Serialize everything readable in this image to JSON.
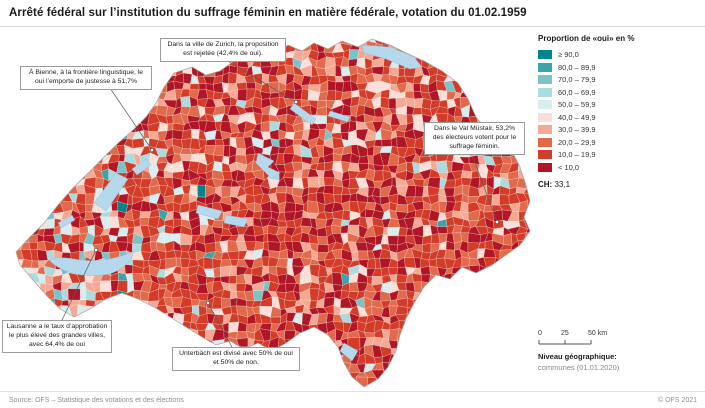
{
  "header": {
    "title": "Arrêté fédéral sur l’institution du suffrage féminin en matière fédérale, votation du 01.02.1959"
  },
  "legend": {
    "title": "Proportion de «oui» en %",
    "classes": [
      {
        "label": "≥ 90,0",
        "color": "#00848e"
      },
      {
        "label": "80,0 – 89,9",
        "color": "#38a4ac"
      },
      {
        "label": "70,0 – 79,9",
        "color": "#79c3c9"
      },
      {
        "label": "60,0 – 69,9",
        "color": "#abdbdf"
      },
      {
        "label": "50,0 – 59,9",
        "color": "#d7eef0"
      },
      {
        "label": "40,0 – 49,9",
        "color": "#fbdfd8"
      },
      {
        "label": "30,0 – 39,9",
        "color": "#f4a995"
      },
      {
        "label": "20,0 – 29,9",
        "color": "#e26a4c"
      },
      {
        "label": "10,0 – 19,9",
        "color": "#d23c28"
      },
      {
        "label": "< 10,0",
        "color": "#b01626"
      }
    ],
    "ch_label": "CH:",
    "ch_value": "33,1"
  },
  "map": {
    "lake_color": "#b5d8ec",
    "annotations": [
      {
        "text": "Dans la ville de Zurich, la proposition est rejetée (42,4% de oui)."
      },
      {
        "text": "À Bienne, à la frontière linguistique, le oui l’emporte de justesse à 51,7%"
      },
      {
        "text": "Dans le Val Müstair, 53,2% des électeurs votent pour le suffrage féminin."
      },
      {
        "text": "Lausanne a le taux d’approbation le plus élevé des grandes villes, avec 64,4% de oui"
      },
      {
        "text": "Unterbäch est divisé avec 50% de oui et 50% de non."
      }
    ]
  },
  "scalebar": {
    "t0": "0",
    "t25": "25",
    "t50": "50 km"
  },
  "geo": {
    "label": "Niveau géographique:",
    "value": "communes (01.01.2020)"
  },
  "footer": {
    "source": "Source: OFS – Statistique des votations et des élections",
    "copyright": "© OFS 2021"
  }
}
